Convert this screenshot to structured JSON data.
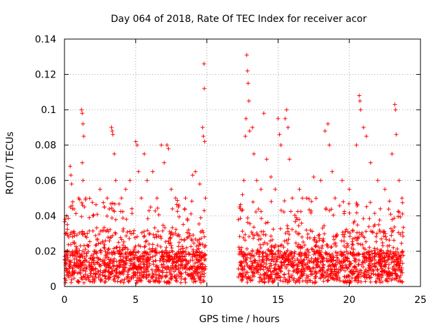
{
  "chart_data": {
    "type": "scatter",
    "title": "Day 064 of 2018, Rate Of TEC Index for receiver acor",
    "xlabel": "GPS time / hours",
    "ylabel": "ROTI / TECUs",
    "xlim": [
      0,
      25
    ],
    "ylim": [
      0,
      0.14
    ],
    "xticks": [
      0,
      5,
      10,
      15,
      20,
      25
    ],
    "xtick_labels": [
      "0",
      "5",
      "10",
      "15",
      "20",
      "25"
    ],
    "yticks": [
      0,
      0.02,
      0.04,
      0.06,
      0.08,
      0.1,
      0.12,
      0.14
    ],
    "ytick_labels": [
      "0",
      "0.02",
      "0.04",
      "0.06",
      "0.08",
      "0.1",
      "0.12",
      "0.14"
    ],
    "grid": true,
    "marker": "+",
    "color": "#ff0000",
    "data_gap_hours": [
      10.0,
      12.2
    ],
    "series": [
      {
        "points": [
          [
            0.05,
            0.038
          ],
          [
            0.1,
            0.03
          ],
          [
            0.15,
            0.04
          ],
          [
            0.2,
            0.035
          ],
          [
            0.3,
            0.028
          ],
          [
            0.4,
            0.068
          ],
          [
            0.45,
            0.063
          ],
          [
            0.5,
            0.058
          ],
          [
            0.55,
            0.044
          ],
          [
            0.7,
            0.025
          ],
          [
            1.0,
            0.05
          ],
          [
            1.2,
            0.1
          ],
          [
            1.25,
            0.098
          ],
          [
            1.3,
            0.092
          ],
          [
            1.35,
            0.085
          ],
          [
            1.25,
            0.07
          ],
          [
            1.3,
            0.06
          ],
          [
            1.4,
            0.045
          ],
          [
            1.6,
            0.03
          ],
          [
            2.0,
            0.04
          ],
          [
            2.5,
            0.055
          ],
          [
            2.8,
            0.045
          ],
          [
            3.0,
            0.05
          ],
          [
            3.3,
            0.09
          ],
          [
            3.35,
            0.088
          ],
          [
            3.4,
            0.086
          ],
          [
            3.5,
            0.075
          ],
          [
            3.6,
            0.06
          ],
          [
            4.0,
            0.05
          ],
          [
            4.3,
            0.055
          ],
          [
            4.6,
            0.06
          ],
          [
            5.0,
            0.082
          ],
          [
            5.1,
            0.08
          ],
          [
            5.2,
            0.065
          ],
          [
            5.4,
            0.05
          ],
          [
            5.6,
            0.075
          ],
          [
            5.8,
            0.06
          ],
          [
            6.2,
            0.065
          ],
          [
            6.5,
            0.05
          ],
          [
            6.8,
            0.08
          ],
          [
            7.0,
            0.07
          ],
          [
            7.2,
            0.08
          ],
          [
            7.3,
            0.078
          ],
          [
            7.5,
            0.055
          ],
          [
            7.8,
            0.05
          ],
          [
            8.0,
            0.045
          ],
          [
            8.5,
            0.05
          ],
          [
            9.0,
            0.063
          ],
          [
            9.2,
            0.065
          ],
          [
            9.5,
            0.058
          ],
          [
            9.7,
            0.09
          ],
          [
            9.75,
            0.085
          ],
          [
            9.8,
            0.126
          ],
          [
            9.82,
            0.112
          ],
          [
            9.85,
            0.082
          ],
          [
            9.9,
            0.05
          ],
          [
            12.3,
            0.045
          ],
          [
            12.5,
            0.052
          ],
          [
            12.6,
            0.06
          ],
          [
            12.7,
            0.085
          ],
          [
            12.75,
            0.095
          ],
          [
            12.8,
            0.131
          ],
          [
            12.85,
            0.122
          ],
          [
            12.9,
            0.115
          ],
          [
            12.95,
            0.105
          ],
          [
            13.0,
            0.088
          ],
          [
            13.2,
            0.09
          ],
          [
            13.3,
            0.075
          ],
          [
            13.5,
            0.06
          ],
          [
            13.8,
            0.055
          ],
          [
            14.0,
            0.098
          ],
          [
            14.2,
            0.072
          ],
          [
            14.5,
            0.062
          ],
          [
            14.8,
            0.055
          ],
          [
            15.0,
            0.095
          ],
          [
            15.1,
            0.086
          ],
          [
            15.2,
            0.08
          ],
          [
            15.5,
            0.095
          ],
          [
            15.6,
            0.1
          ],
          [
            15.7,
            0.09
          ],
          [
            15.8,
            0.072
          ],
          [
            16.0,
            0.05
          ],
          [
            16.5,
            0.055
          ],
          [
            17.0,
            0.05
          ],
          [
            17.5,
            0.062
          ],
          [
            18.0,
            0.06
          ],
          [
            18.3,
            0.088
          ],
          [
            18.5,
            0.092
          ],
          [
            18.6,
            0.08
          ],
          [
            18.8,
            0.065
          ],
          [
            19.0,
            0.05
          ],
          [
            19.5,
            0.06
          ],
          [
            20.0,
            0.055
          ],
          [
            20.5,
            0.08
          ],
          [
            20.7,
            0.108
          ],
          [
            20.75,
            0.105
          ],
          [
            20.8,
            0.1
          ],
          [
            21.0,
            0.09
          ],
          [
            21.2,
            0.085
          ],
          [
            21.5,
            0.07
          ],
          [
            22.0,
            0.06
          ],
          [
            22.5,
            0.055
          ],
          [
            23.0,
            0.075
          ],
          [
            23.2,
            0.103
          ],
          [
            23.25,
            0.1
          ],
          [
            23.3,
            0.086
          ],
          [
            23.5,
            0.06
          ],
          [
            23.7,
            0.05
          ]
        ]
      }
    ]
  }
}
